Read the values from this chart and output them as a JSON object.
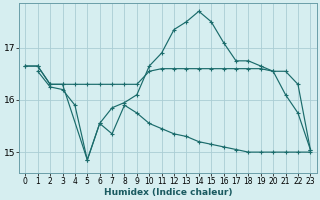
{
  "xlabel": "Humidex (Indice chaleur)",
  "bg_color": "#d6eef0",
  "grid_color": "#aacdd4",
  "line_color": "#1a6b6b",
  "xlim": [
    -0.5,
    23.5
  ],
  "ylim": [
    14.6,
    17.85
  ],
  "yticks": [
    15,
    16,
    17
  ],
  "xticks": [
    0,
    1,
    2,
    3,
    4,
    5,
    6,
    7,
    8,
    9,
    10,
    11,
    12,
    13,
    14,
    15,
    16,
    17,
    18,
    19,
    20,
    21,
    22,
    23
  ],
  "series": [
    {
      "x": [
        0,
        1,
        2,
        3,
        4,
        5,
        6,
        7,
        8,
        9,
        10,
        11,
        12,
        13,
        14,
        15,
        16,
        17,
        18,
        19,
        20,
        21,
        22,
        23
      ],
      "y": [
        16.65,
        16.65,
        16.3,
        16.3,
        16.3,
        16.3,
        16.3,
        16.3,
        16.3,
        16.3,
        16.55,
        16.6,
        16.6,
        16.6,
        16.6,
        16.6,
        16.6,
        16.6,
        16.6,
        16.6,
        16.55,
        16.55,
        16.3,
        15.05
      ]
    },
    {
      "x": [
        0,
        1,
        2,
        3,
        5,
        6,
        7,
        8,
        9,
        10,
        11,
        12,
        13,
        14,
        15,
        16,
        17,
        18,
        19,
        20,
        21,
        22,
        23
      ],
      "y": [
        16.65,
        16.65,
        16.3,
        16.3,
        14.85,
        15.55,
        15.85,
        15.95,
        16.1,
        16.65,
        16.9,
        17.35,
        17.5,
        17.7,
        17.5,
        17.1,
        16.75,
        16.75,
        16.65,
        16.55,
        16.1,
        15.75,
        15.05
      ]
    },
    {
      "x": [
        1,
        2,
        3,
        4,
        5,
        6,
        7,
        8,
        9,
        10,
        11,
        12,
        13,
        14,
        15,
        16,
        17,
        18,
        19,
        20,
        21,
        22,
        23
      ],
      "y": [
        16.55,
        16.25,
        16.2,
        15.9,
        14.85,
        15.55,
        15.35,
        15.9,
        15.75,
        15.55,
        15.45,
        15.35,
        15.3,
        15.2,
        15.15,
        15.1,
        15.05,
        15.0,
        15.0,
        15.0,
        15.0,
        15.0,
        15.0
      ]
    }
  ]
}
